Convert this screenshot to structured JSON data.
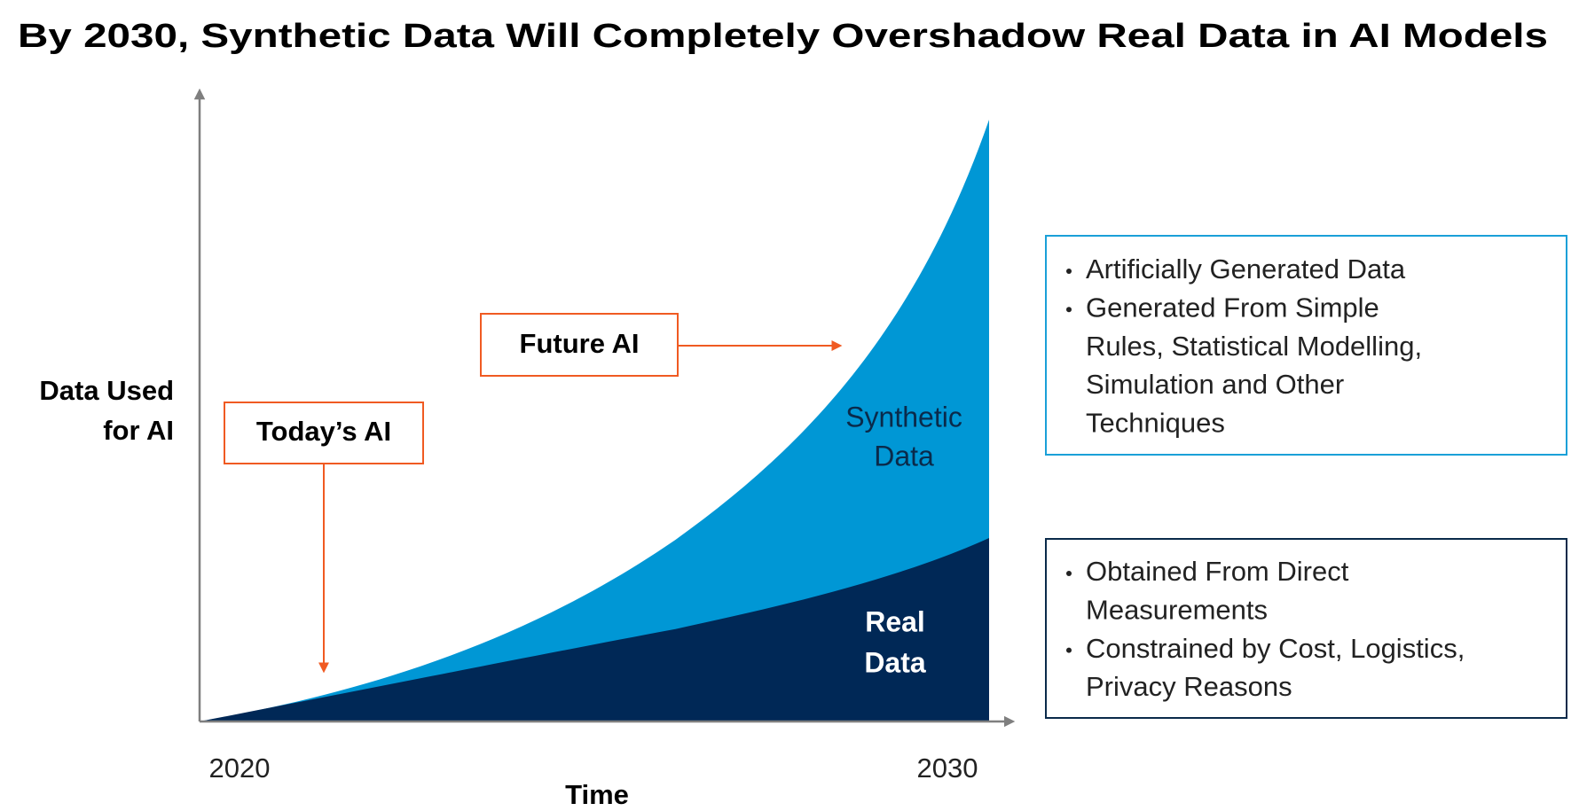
{
  "title": "By 2030,  Synthetic Data Will Completely Overshadow Real Data in AI Models",
  "y_axis_label": [
    "Data Used",
    "for AI"
  ],
  "x_axis_label": "Time",
  "x_axis_start": "2020",
  "x_axis_end": "2030",
  "areas": {
    "synthetic": [
      "Synthetic",
      "Data"
    ],
    "real": [
      "Real",
      "Data"
    ]
  },
  "callouts": {
    "today": "Today’s AI",
    "future": "Future AI"
  },
  "synthetic_box": {
    "bullets": [
      [
        "Artificially Generated Data"
      ],
      [
        "Generated From Simple",
        "Rules, Statistical Modelling,",
        "Simulation and Other",
        "Techniques"
      ]
    ]
  },
  "real_box": {
    "bullets": [
      [
        "Obtained From Direct",
        "Measurements"
      ],
      [
        "Constrained by Cost, Logistics,",
        "Privacy Reasons"
      ]
    ]
  }
}
